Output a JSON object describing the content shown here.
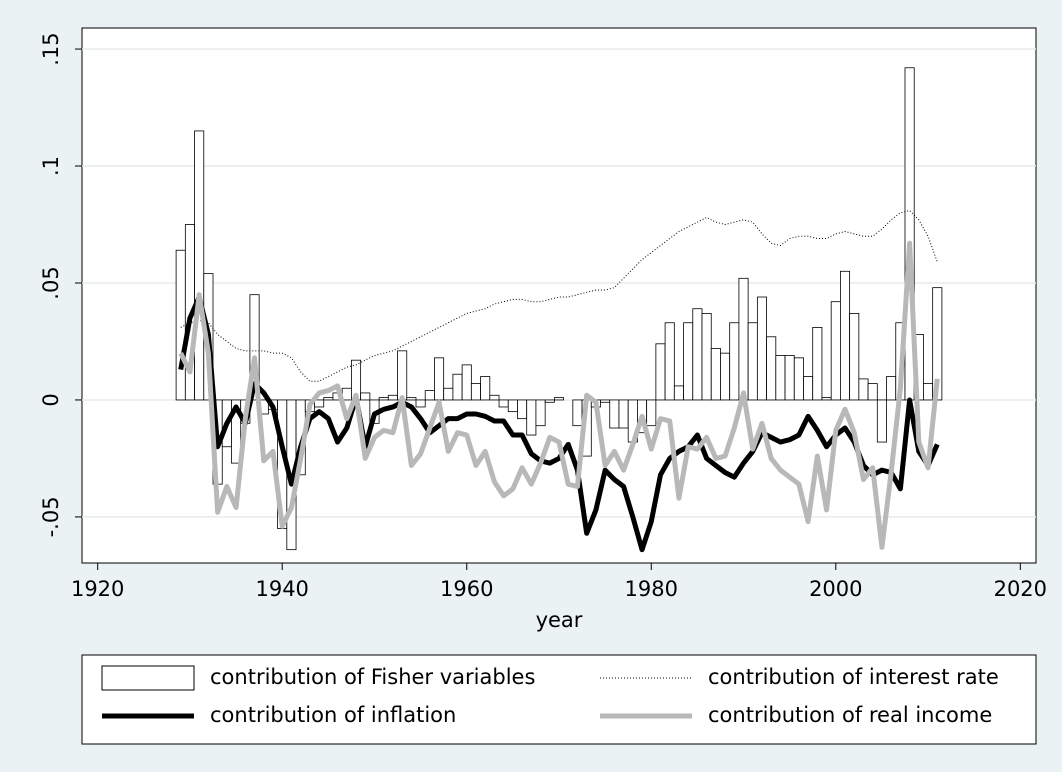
{
  "chart_data": {
    "type": "combo",
    "x_label": "year",
    "x": [
      1929,
      1930,
      1931,
      1932,
      1933,
      1934,
      1935,
      1936,
      1937,
      1938,
      1939,
      1940,
      1941,
      1942,
      1943,
      1944,
      1945,
      1946,
      1947,
      1948,
      1949,
      1950,
      1951,
      1952,
      1953,
      1954,
      1955,
      1956,
      1957,
      1958,
      1959,
      1960,
      1961,
      1962,
      1963,
      1964,
      1965,
      1966,
      1967,
      1968,
      1969,
      1970,
      1971,
      1972,
      1973,
      1974,
      1975,
      1976,
      1977,
      1978,
      1979,
      1980,
      1981,
      1982,
      1983,
      1984,
      1985,
      1986,
      1987,
      1988,
      1989,
      1990,
      1991,
      1992,
      1993,
      1994,
      1995,
      1996,
      1997,
      1998,
      1999,
      2000,
      2001,
      2002,
      2003,
      2004,
      2005,
      2006,
      2007,
      2008,
      2009,
      2010,
      2011
    ],
    "series": [
      {
        "name": "contribution of Fisher variables",
        "type": "bar",
        "color": "#000000",
        "values": [
          0.064,
          0.075,
          0.115,
          0.054,
          -0.036,
          -0.02,
          -0.027,
          -0.01,
          0.045,
          -0.006,
          -0.004,
          -0.055,
          -0.064,
          -0.032,
          -0.005,
          -0.003,
          0.001,
          0.003,
          0.005,
          0.017,
          0.003,
          -0.01,
          0.001,
          0.002,
          0.021,
          0.001,
          -0.003,
          0.004,
          0.018,
          0.005,
          0.011,
          0.015,
          0.007,
          0.01,
          0.002,
          -0.003,
          -0.005,
          -0.008,
          -0.015,
          -0.011,
          -0.001,
          0.001,
          0,
          -0.011,
          -0.024,
          -0.003,
          -0.001,
          -0.012,
          -0.012,
          -0.018,
          -0.014,
          -0.011,
          0.024,
          0.033,
          0.006,
          0.033,
          0.039,
          0.037,
          0.022,
          0.02,
          0.033,
          0.052,
          0.033,
          0.044,
          0.027,
          0.019,
          0.019,
          0.018,
          0.01,
          0.031,
          0.001,
          0.042,
          0.055,
          0.037,
          0.009,
          0.007,
          -0.018,
          0.01,
          0.033,
          0.142,
          0.028,
          0.007,
          0.048
        ]
      },
      {
        "name": "contribution of interest rate",
        "type": "line",
        "style": "dotted",
        "color": "#000000",
        "values": [
          0.031,
          0.033,
          0.034,
          0.033,
          0.028,
          0.025,
          0.022,
          0.021,
          0.021,
          0.021,
          0.02,
          0.02,
          0.018,
          0.012,
          0.008,
          0.008,
          0.01,
          0.012,
          0.014,
          0.015,
          0.017,
          0.019,
          0.02,
          0.021,
          0.023,
          0.025,
          0.027,
          0.029,
          0.031,
          0.033,
          0.035,
          0.037,
          0.038,
          0.039,
          0.041,
          0.042,
          0.043,
          0.043,
          0.042,
          0.042,
          0.043,
          0.044,
          0.044,
          0.045,
          0.046,
          0.047,
          0.047,
          0.048,
          0.052,
          0.056,
          0.06,
          0.063,
          0.066,
          0.069,
          0.072,
          0.074,
          0.076,
          0.078,
          0.076,
          0.075,
          0.076,
          0.077,
          0.076,
          0.071,
          0.067,
          0.066,
          0.069,
          0.07,
          0.07,
          0.069,
          0.069,
          0.071,
          0.072,
          0.071,
          0.07,
          0.07,
          0.073,
          0.077,
          0.08,
          0.081,
          0.077,
          0.07,
          0.059
        ]
      },
      {
        "name": "contribution of inflation",
        "type": "line",
        "style": "solid",
        "color": "#000000",
        "values": [
          0.013,
          0.035,
          0.044,
          0.028,
          -0.02,
          -0.01,
          -0.003,
          -0.01,
          0.007,
          0.003,
          -0.003,
          -0.02,
          -0.036,
          -0.02,
          -0.008,
          -0.005,
          -0.008,
          -0.018,
          -0.012,
          0.001,
          -0.02,
          -0.006,
          -0.004,
          -0.003,
          -0.001,
          -0.003,
          -0.008,
          -0.014,
          -0.011,
          -0.008,
          -0.008,
          -0.006,
          -0.006,
          -0.007,
          -0.009,
          -0.009,
          -0.015,
          -0.015,
          -0.023,
          -0.026,
          -0.027,
          -0.025,
          -0.019,
          -0.03,
          -0.057,
          -0.047,
          -0.03,
          -0.034,
          -0.037,
          -0.05,
          -0.064,
          -0.052,
          -0.032,
          -0.025,
          -0.022,
          -0.02,
          -0.015,
          -0.025,
          -0.028,
          -0.031,
          -0.033,
          -0.027,
          -0.022,
          -0.014,
          -0.016,
          -0.018,
          -0.017,
          -0.015,
          -0.007,
          -0.013,
          -0.02,
          -0.015,
          -0.012,
          -0.018,
          -0.028,
          -0.032,
          -0.03,
          -0.031,
          -0.038,
          0,
          -0.022,
          -0.028,
          -0.019
        ]
      },
      {
        "name": "contribution of real income",
        "type": "line",
        "style": "solid",
        "color": "#b8b8b8",
        "values": [
          0.02,
          0.012,
          0.045,
          0.02,
          -0.048,
          -0.037,
          -0.046,
          -0.008,
          0.018,
          -0.026,
          -0.022,
          -0.054,
          -0.046,
          -0.025,
          -0.002,
          0.003,
          0.004,
          0.006,
          -0.008,
          0.002,
          -0.025,
          -0.016,
          -0.013,
          -0.014,
          0.001,
          -0.028,
          -0.023,
          -0.012,
          -0.001,
          -0.022,
          -0.014,
          -0.015,
          -0.028,
          -0.022,
          -0.035,
          -0.041,
          -0.038,
          -0.029,
          -0.036,
          -0.027,
          -0.016,
          -0.018,
          -0.036,
          -0.037,
          0.002,
          -0.001,
          -0.028,
          -0.022,
          -0.03,
          -0.019,
          -0.007,
          -0.021,
          -0.008,
          -0.009,
          -0.042,
          -0.02,
          -0.021,
          -0.016,
          -0.025,
          -0.024,
          -0.012,
          0.003,
          -0.021,
          -0.01,
          -0.025,
          -0.03,
          -0.033,
          -0.036,
          -0.052,
          -0.024,
          -0.047,
          -0.013,
          -0.004,
          -0.014,
          -0.034,
          -0.029,
          -0.063,
          -0.031,
          0.005,
          0.067,
          -0.018,
          -0.029,
          0.009
        ]
      }
    ],
    "xlim": [
      1918.3,
      2021.7
    ],
    "xticks": [
      1920,
      1940,
      1960,
      1980,
      2000,
      2020
    ],
    "ylim": [
      -0.0697,
      0.159
    ],
    "yticks": [
      {
        "value": -0.05,
        "label": "-.05"
      },
      0,
      {
        "value": 0.05,
        "label": ".05"
      },
      {
        "value": 0.1,
        "label": ".1"
      },
      {
        "value": 0.15,
        "label": ".15"
      }
    ],
    "grid": true
  }
}
